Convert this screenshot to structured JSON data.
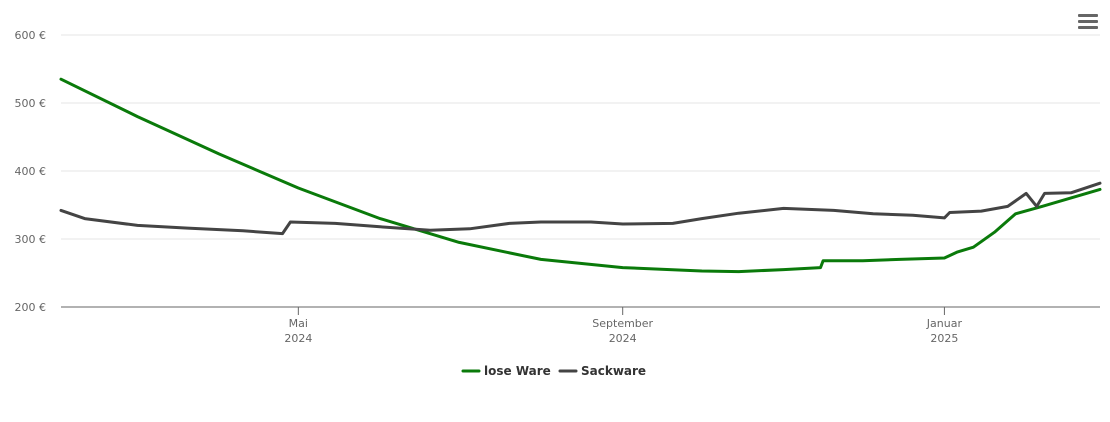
{
  "menu": {
    "icon": "hamburger-menu-icon"
  },
  "chart_data": {
    "type": "line",
    "title": "",
    "xlabel": "",
    "ylabel": "",
    "ylim": [
      200,
      600
    ],
    "y_ticks": [
      "200 €",
      "300 €",
      "400 €",
      "500 €",
      "600 €"
    ],
    "y_tick_values": [
      200,
      300,
      400,
      500,
      600
    ],
    "x_range": [
      "2024-02-01",
      "2025-03-01"
    ],
    "x_ticks": [
      {
        "date": "2024-05-01",
        "line1": "Mai",
        "line2": "2024"
      },
      {
        "date": "2024-09-01",
        "line1": "September",
        "line2": "2024"
      },
      {
        "date": "2025-01-01",
        "line1": "Januar",
        "line2": "2025"
      }
    ],
    "grid": true,
    "legend_position": "bottom-center",
    "series": [
      {
        "name": "lose Ware",
        "color": "#0a7a0a",
        "points": [
          [
            "2024-02-01",
            535
          ],
          [
            "2024-03-01",
            480
          ],
          [
            "2024-04-01",
            425
          ],
          [
            "2024-05-01",
            375
          ],
          [
            "2024-06-01",
            330
          ],
          [
            "2024-07-01",
            295
          ],
          [
            "2024-08-01",
            270
          ],
          [
            "2024-09-01",
            258
          ],
          [
            "2024-10-01",
            253
          ],
          [
            "2024-10-15",
            252
          ],
          [
            "2024-11-01",
            255
          ],
          [
            "2024-11-15",
            258
          ],
          [
            "2024-11-16",
            268
          ],
          [
            "2024-12-01",
            268
          ],
          [
            "2024-12-15",
            270
          ],
          [
            "2025-01-01",
            272
          ],
          [
            "2025-01-06",
            281
          ],
          [
            "2025-01-12",
            288
          ],
          [
            "2025-01-20",
            310
          ],
          [
            "2025-01-28",
            337
          ],
          [
            "2025-02-07",
            348
          ],
          [
            "2025-03-01",
            373
          ]
        ]
      },
      {
        "name": "Sackware",
        "color": "#444444",
        "points": [
          [
            "2024-02-01",
            342
          ],
          [
            "2024-02-10",
            330
          ],
          [
            "2024-03-01",
            320
          ],
          [
            "2024-03-20",
            316
          ],
          [
            "2024-04-10",
            312
          ],
          [
            "2024-04-25",
            308
          ],
          [
            "2024-04-28",
            325
          ],
          [
            "2024-05-15",
            323
          ],
          [
            "2024-06-01",
            318
          ],
          [
            "2024-06-20",
            313
          ],
          [
            "2024-07-05",
            315
          ],
          [
            "2024-07-20",
            323
          ],
          [
            "2024-08-01",
            325
          ],
          [
            "2024-08-20",
            325
          ],
          [
            "2024-09-01",
            322
          ],
          [
            "2024-09-20",
            323
          ],
          [
            "2024-10-01",
            330
          ],
          [
            "2024-10-15",
            338
          ],
          [
            "2024-11-01",
            345
          ],
          [
            "2024-11-20",
            342
          ],
          [
            "2024-12-05",
            337
          ],
          [
            "2024-12-20",
            335
          ],
          [
            "2025-01-01",
            331
          ],
          [
            "2025-01-03",
            339
          ],
          [
            "2025-01-15",
            341
          ],
          [
            "2025-01-25",
            348
          ],
          [
            "2025-02-01",
            367
          ],
          [
            "2025-02-05",
            348
          ],
          [
            "2025-02-08",
            367
          ],
          [
            "2025-02-18",
            368
          ],
          [
            "2025-03-01",
            382
          ]
        ]
      }
    ]
  }
}
